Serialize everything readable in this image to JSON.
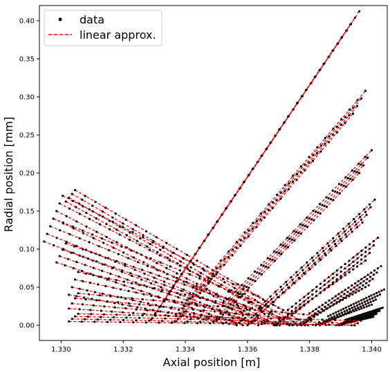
{
  "chart_data": {
    "type": "scatter",
    "xlabel": "Axial position [m]",
    "ylabel": "Radial position [mm]",
    "xlim": [
      1.3293,
      1.3405
    ],
    "ylim": [
      -0.02,
      0.42
    ],
    "x_ticks": [
      "1.330",
      "1.332",
      "1.334",
      "1.336",
      "1.338",
      "1.340"
    ],
    "y_ticks": [
      "0.00",
      "0.05",
      "0.10",
      "0.15",
      "0.20",
      "0.25",
      "0.30",
      "0.35",
      "0.40"
    ],
    "grid": false,
    "legend": {
      "position": "top-left",
      "entries": [
        {
          "label": "data",
          "marker": "dot",
          "color": "#000000"
        },
        {
          "label": "linear approx.",
          "line": "dashed",
          "color": "#ff0000"
        }
      ]
    },
    "series": [
      {
        "name": "data",
        "style": "points",
        "color": "#000000"
      },
      {
        "name": "linear approx.",
        "style": "dashed",
        "color": "#ff0000"
      }
    ],
    "bands": [
      {
        "x0": 1.3331,
        "y0": 0.02,
        "x1": 1.3394,
        "y1": 0.4,
        "width": 0.0004,
        "thickness": 0.025
      },
      {
        "x0": 1.3339,
        "y0": 0.02,
        "x1": 1.3396,
        "y1": 0.293,
        "width": 0.0004,
        "thickness": 0.03
      },
      {
        "x0": 1.3352,
        "y0": 0.02,
        "x1": 1.3398,
        "y1": 0.215,
        "width": 0.0004,
        "thickness": 0.03
      },
      {
        "x0": 1.3362,
        "y0": 0.01,
        "x1": 1.3399,
        "y1": 0.15,
        "width": 0.0004,
        "thickness": 0.03
      },
      {
        "x0": 1.3371,
        "y0": 0.005,
        "x1": 1.34,
        "y1": 0.1,
        "width": 0.0004,
        "thickness": 0.03
      },
      {
        "x0": 1.3378,
        "y0": 0.003,
        "x1": 1.3401,
        "y1": 0.065,
        "width": 0.0004,
        "thickness": 0.025
      },
      {
        "x0": 1.3384,
        "y0": 0.002,
        "x1": 1.3402,
        "y1": 0.037,
        "width": 0.0004,
        "thickness": 0.02
      },
      {
        "x0": 1.339,
        "y0": 0.001,
        "x1": 1.3402,
        "y1": 0.017,
        "width": 0.0003,
        "thickness": 0.012
      },
      {
        "x0": 1.3303,
        "y0": 0.17,
        "x1": 1.3375,
        "y1": 0.0,
        "width": 0.0003,
        "thickness": 0.015
      },
      {
        "x0": 1.3299,
        "y0": 0.155,
        "x1": 1.337,
        "y1": 0.005,
        "width": 0.0003,
        "thickness": 0.03
      },
      {
        "x0": 1.3296,
        "y0": 0.125,
        "x1": 1.3365,
        "y1": 0.01,
        "width": 0.0003,
        "thickness": 0.03
      },
      {
        "x0": 1.33,
        "y0": 0.095,
        "x1": 1.336,
        "y1": 0.01,
        "width": 0.0003,
        "thickness": 0.025
      },
      {
        "x0": 1.3304,
        "y0": 0.055,
        "x1": 1.3358,
        "y1": 0.008,
        "width": 0.0003,
        "thickness": 0.03
      },
      {
        "x0": 1.3304,
        "y0": 0.032,
        "x1": 1.338,
        "y1": 0.003,
        "width": 0.0003,
        "thickness": 0.02
      },
      {
        "x0": 1.3304,
        "y0": 0.01,
        "x1": 1.3395,
        "y1": 0.001,
        "width": 0.0003,
        "thickness": 0.01
      }
    ]
  }
}
